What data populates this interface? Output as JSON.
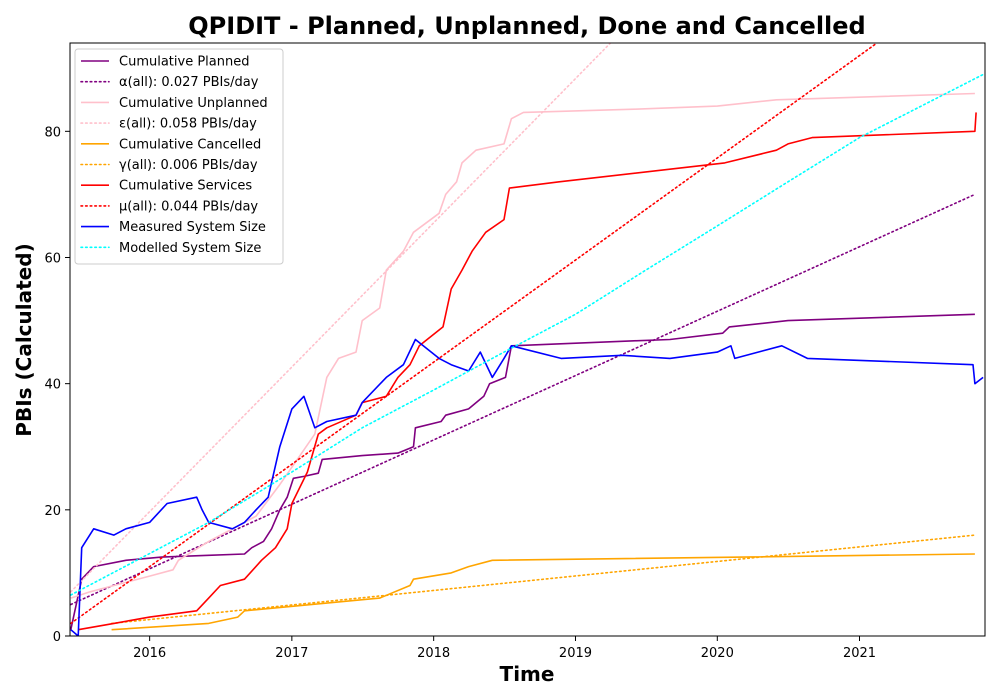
{
  "chart_data": {
    "type": "line",
    "title": "QPIDIT - Planned, Unplanned, Done  and Cancelled",
    "xlabel": "Time",
    "ylabel": "PBIs (Calculated)",
    "x_axis": "date",
    "xlim": [
      "2015-06-10",
      "2021-11-20"
    ],
    "ylim": [
      0,
      94
    ],
    "x_ticks": [
      "2016",
      "2017",
      "2018",
      "2019",
      "2020",
      "2021"
    ],
    "y_ticks": [
      0,
      20,
      40,
      60,
      80
    ],
    "grid": false,
    "legend_position": "top-left",
    "series": [
      {
        "name": "Cumulative Planned",
        "color": "#800080",
        "style": "solid",
        "points": [
          [
            "2015-06-12",
            1
          ],
          [
            "2015-07-10",
            9
          ],
          [
            "2015-08-10",
            11
          ],
          [
            "2015-11-01",
            12
          ],
          [
            "2016-02-01",
            12.5
          ],
          [
            "2016-06-01",
            12.8
          ],
          [
            "2016-09-01",
            13
          ],
          [
            "2016-09-20",
            14
          ],
          [
            "2016-10-20",
            15
          ],
          [
            "2016-11-10",
            17
          ],
          [
            "2016-12-01",
            20
          ],
          [
            "2016-12-20",
            22
          ],
          [
            "2017-01-05",
            25
          ],
          [
            "2017-02-01",
            25.3
          ],
          [
            "2017-03-10",
            25.8
          ],
          [
            "2017-03-20",
            28
          ],
          [
            "2017-07-01",
            28.6
          ],
          [
            "2017-10-01",
            29
          ],
          [
            "2017-11-10",
            30
          ],
          [
            "2017-11-15",
            33
          ],
          [
            "2018-01-20",
            34
          ],
          [
            "2018-02-01",
            35
          ],
          [
            "2018-04-01",
            36
          ],
          [
            "2018-05-10",
            38
          ],
          [
            "2018-05-25",
            40
          ],
          [
            "2018-07-05",
            41
          ],
          [
            "2018-07-20",
            46
          ],
          [
            "2019-06-01",
            46.8
          ],
          [
            "2019-09-01",
            47
          ],
          [
            "2020-01-15",
            48
          ],
          [
            "2020-02-01",
            49
          ],
          [
            "2020-07-01",
            50
          ],
          [
            "2021-10-25",
            51
          ]
        ]
      },
      {
        "name": "α(all): 0.027 PBIs/day",
        "color": "#800080",
        "style": "dotted",
        "points": [
          [
            "2015-06-12",
            5
          ],
          [
            "2021-10-25",
            70
          ]
        ]
      },
      {
        "name": "Cumulative Unplanned",
        "color": "#ffc0cb",
        "style": "solid",
        "points": [
          [
            "2015-06-12",
            6
          ],
          [
            "2015-08-01",
            7
          ],
          [
            "2015-10-01",
            8
          ],
          [
            "2016-01-01",
            9.5
          ],
          [
            "2016-03-01",
            10.5
          ],
          [
            "2016-03-15",
            12
          ],
          [
            "2016-06-01",
            15
          ],
          [
            "2016-08-01",
            17
          ],
          [
            "2016-10-01",
            19
          ],
          [
            "2016-12-01",
            24
          ],
          [
            "2017-01-15",
            28
          ],
          [
            "2017-03-01",
            32
          ],
          [
            "2017-04-01",
            41
          ],
          [
            "2017-05-01",
            44
          ],
          [
            "2017-06-15",
            45
          ],
          [
            "2017-07-01",
            50
          ],
          [
            "2017-08-15",
            52
          ],
          [
            "2017-09-01",
            58
          ],
          [
            "2017-10-15",
            61
          ],
          [
            "2017-11-10",
            64
          ],
          [
            "2018-01-15",
            67
          ],
          [
            "2018-02-01",
            70
          ],
          [
            "2018-03-01",
            72
          ],
          [
            "2018-03-15",
            75
          ],
          [
            "2018-04-20",
            77
          ],
          [
            "2018-07-01",
            78
          ],
          [
            "2018-07-20",
            82
          ],
          [
            "2018-08-20",
            83
          ],
          [
            "2019-06-01",
            83.5
          ],
          [
            "2020-01-01",
            84
          ],
          [
            "2020-06-01",
            85
          ],
          [
            "2021-10-25",
            86
          ]
        ]
      },
      {
        "name": "ε(all): 0.058 PBIs/day",
        "color": "#ffc0cb",
        "style": "dotted",
        "points": [
          [
            "2015-06-12",
            7
          ],
          [
            "2019-04-01",
            94
          ]
        ]
      },
      {
        "name": "Cumulative Cancelled",
        "color": "#ffa500",
        "style": "solid",
        "points": [
          [
            "2015-09-25",
            1
          ],
          [
            "2016-06-01",
            2
          ],
          [
            "2016-08-15",
            3
          ],
          [
            "2016-09-01",
            4
          ],
          [
            "2017-08-15",
            6
          ],
          [
            "2017-11-01",
            8
          ],
          [
            "2017-11-10",
            9
          ],
          [
            "2018-02-15",
            10
          ],
          [
            "2018-04-01",
            11
          ],
          [
            "2018-06-01",
            12
          ],
          [
            "2021-10-25",
            13
          ]
        ]
      },
      {
        "name": "γ(all): 0.006 PBIs/day",
        "color": "#ffa500",
        "style": "dotted",
        "points": [
          [
            "2015-09-25",
            2
          ],
          [
            "2021-10-25",
            16
          ]
        ]
      },
      {
        "name": "Cumulative Services",
        "color": "#ff0000",
        "style": "solid",
        "points": [
          [
            "2015-07-01",
            1
          ],
          [
            "2015-10-01",
            2
          ],
          [
            "2016-01-01",
            3
          ],
          [
            "2016-05-01",
            4
          ],
          [
            "2016-06-01",
            6
          ],
          [
            "2016-07-01",
            8
          ],
          [
            "2016-09-01",
            9
          ],
          [
            "2016-10-15",
            12
          ],
          [
            "2016-11-20",
            14
          ],
          [
            "2016-12-20",
            17
          ],
          [
            "2017-01-01",
            21
          ],
          [
            "2017-02-10",
            26
          ],
          [
            "2017-03-10",
            32
          ],
          [
            "2017-04-01",
            33
          ],
          [
            "2017-06-15",
            35
          ],
          [
            "2017-07-01",
            37
          ],
          [
            "2017-09-01",
            38
          ],
          [
            "2017-10-01",
            41
          ],
          [
            "2017-11-01",
            43
          ],
          [
            "2017-11-25",
            46
          ],
          [
            "2018-01-25",
            49
          ],
          [
            "2018-02-15",
            55
          ],
          [
            "2018-03-15",
            58
          ],
          [
            "2018-04-10",
            61
          ],
          [
            "2018-05-15",
            64
          ],
          [
            "2018-07-01",
            66
          ],
          [
            "2018-07-15",
            71
          ],
          [
            "2018-11-20",
            72
          ],
          [
            "2019-09-01",
            74
          ],
          [
            "2020-01-20",
            75
          ],
          [
            "2020-06-01",
            77
          ],
          [
            "2020-07-01",
            78
          ],
          [
            "2020-09-01",
            79
          ],
          [
            "2021-10-25",
            80
          ],
          [
            "2021-10-28",
            83
          ]
        ]
      },
      {
        "name": "μ(all): 0.044 PBIs/day",
        "color": "#ff0000",
        "style": "dotted",
        "points": [
          [
            "2015-06-12",
            2
          ],
          [
            "2021-02-15",
            94
          ]
        ]
      },
      {
        "name": "Measured System Size",
        "color": "#0000ff",
        "style": "solid",
        "points": [
          [
            "2015-06-12",
            1
          ],
          [
            "2015-07-01",
            0
          ],
          [
            "2015-07-10",
            14
          ],
          [
            "2015-08-10",
            17
          ],
          [
            "2015-10-01",
            16
          ],
          [
            "2015-11-01",
            17
          ],
          [
            "2016-01-01",
            18
          ],
          [
            "2016-02-15",
            21
          ],
          [
            "2016-05-01",
            22
          ],
          [
            "2016-05-15",
            20
          ],
          [
            "2016-06-01",
            18
          ],
          [
            "2016-08-01",
            17
          ],
          [
            "2016-09-01",
            18
          ],
          [
            "2016-10-01",
            20
          ],
          [
            "2016-11-01",
            22
          ],
          [
            "2016-12-01",
            30
          ],
          [
            "2017-01-01",
            36
          ],
          [
            "2017-02-01",
            38
          ],
          [
            "2017-03-01",
            33
          ],
          [
            "2017-04-01",
            34
          ],
          [
            "2017-06-15",
            35
          ],
          [
            "2017-07-01",
            37
          ],
          [
            "2017-09-01",
            41
          ],
          [
            "2017-10-15",
            43
          ],
          [
            "2017-11-15",
            47
          ],
          [
            "2018-01-15",
            44
          ],
          [
            "2018-02-15",
            43
          ],
          [
            "2018-04-01",
            42
          ],
          [
            "2018-05-01",
            45
          ],
          [
            "2018-06-01",
            41
          ],
          [
            "2018-07-01",
            44
          ],
          [
            "2018-07-20",
            46
          ],
          [
            "2018-11-25",
            44
          ],
          [
            "2019-05-01",
            44.5
          ],
          [
            "2019-09-01",
            44
          ],
          [
            "2020-01-01",
            45
          ],
          [
            "2020-02-05",
            46
          ],
          [
            "2020-02-15",
            44
          ],
          [
            "2020-06-15",
            46
          ],
          [
            "2020-08-20",
            44
          ],
          [
            "2021-10-20",
            43
          ],
          [
            "2021-10-25",
            40
          ],
          [
            "2021-11-15",
            41
          ]
        ]
      },
      {
        "name": "Modelled System Size",
        "color": "#00ffff",
        "style": "dotted",
        "points": [
          [
            "2015-06-12",
            6.5
          ],
          [
            "2016-06-01",
            18
          ],
          [
            "2017-01-01",
            26
          ],
          [
            "2017-07-01",
            33
          ],
          [
            "2018-01-01",
            39
          ],
          [
            "2018-07-01",
            45
          ],
          [
            "2019-01-01",
            51
          ],
          [
            "2019-07-01",
            58
          ],
          [
            "2020-01-01",
            65
          ],
          [
            "2020-07-01",
            72
          ],
          [
            "2021-01-01",
            79
          ],
          [
            "2021-11-15",
            89
          ]
        ]
      }
    ]
  }
}
